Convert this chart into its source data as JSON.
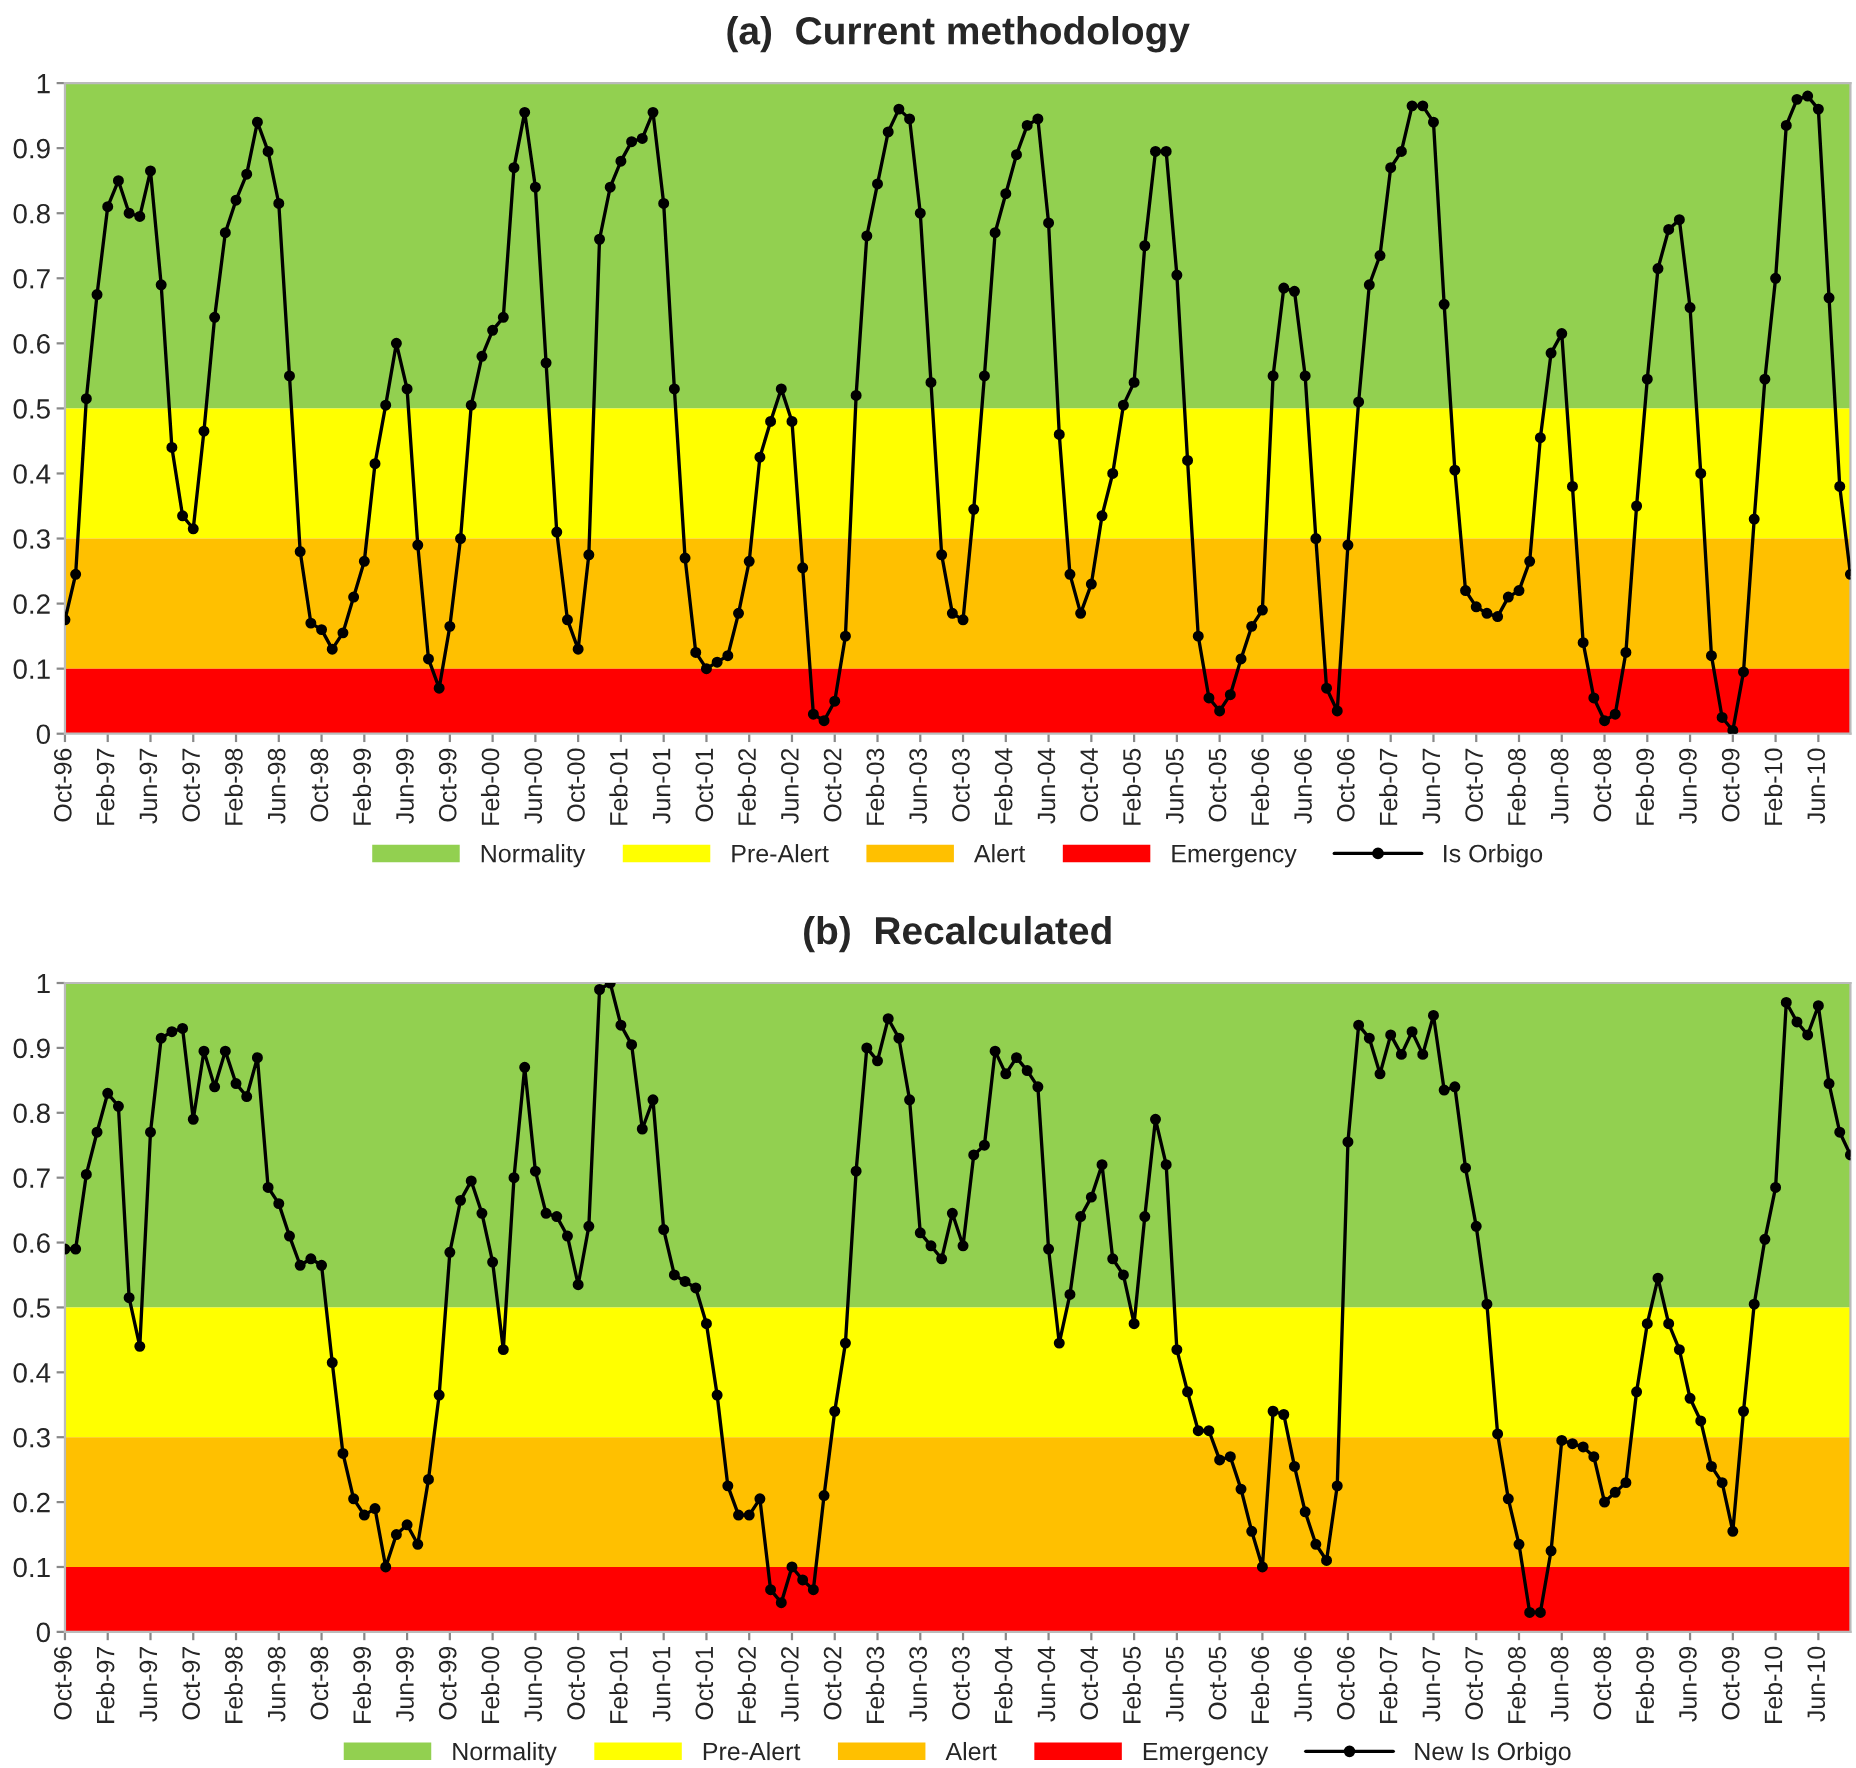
{
  "chart_data": [
    {
      "type": "line",
      "title": "(a)  Current methodology",
      "categories": [
        "Oct-96",
        null,
        null,
        null,
        "Feb-97",
        null,
        null,
        null,
        "Jun-97",
        null,
        null,
        null,
        "Oct-97",
        null,
        null,
        null,
        "Feb-98",
        null,
        null,
        null,
        "Jun-98",
        null,
        null,
        null,
        "Oct-98",
        null,
        null,
        null,
        "Feb-99",
        null,
        null,
        null,
        "Jun-99",
        null,
        null,
        null,
        "Oct-99",
        null,
        null,
        null,
        "Feb-00",
        null,
        null,
        null,
        "Jun-00",
        null,
        null,
        null,
        "Oct-00",
        null,
        null,
        null,
        "Feb-01",
        null,
        null,
        null,
        "Jun-01",
        null,
        null,
        null,
        "Oct-01",
        null,
        null,
        null,
        "Feb-02",
        null,
        null,
        null,
        "Jun-02",
        null,
        null,
        null,
        "Oct-02",
        null,
        null,
        null,
        "Feb-03",
        null,
        null,
        null,
        "Jun-03",
        null,
        null,
        null,
        "Oct-03",
        null,
        null,
        null,
        "Feb-04",
        null,
        null,
        null,
        "Jun-04",
        null,
        null,
        null,
        "Oct-04",
        null,
        null,
        null,
        "Feb-05",
        null,
        null,
        null,
        "Jun-05",
        null,
        null,
        null,
        "Oct-05",
        null,
        null,
        null,
        "Feb-06",
        null,
        null,
        null,
        "Jun-06",
        null,
        null,
        null,
        "Oct-06",
        null,
        null,
        null,
        "Feb-07",
        null,
        null,
        null,
        "Jun-07",
        null,
        null,
        null,
        "Oct-07",
        null,
        null,
        null,
        "Feb-08",
        null,
        null,
        null,
        "Jun-08",
        null,
        null,
        null,
        "Oct-08",
        null,
        null,
        null,
        "Feb-09",
        null,
        null,
        null,
        "Jun-09",
        null,
        null,
        null,
        "Oct-09",
        null,
        null,
        null,
        "Feb-10",
        null,
        null,
        null,
        "Jun-10",
        null,
        null,
        null
      ],
      "series": [
        {
          "name": "Is Orbigo",
          "color": "#000000",
          "values": [
            0.175,
            0.245,
            0.515,
            0.675,
            0.81,
            0.85,
            0.8,
            0.795,
            0.865,
            0.69,
            0.44,
            0.335,
            0.315,
            0.465,
            0.64,
            0.77,
            0.82,
            0.86,
            0.94,
            0.895,
            0.815,
            0.55,
            0.28,
            0.17,
            0.16,
            0.13,
            0.155,
            0.21,
            0.265,
            0.415,
            0.505,
            0.6,
            0.53,
            0.29,
            0.115,
            0.07,
            0.165,
            0.3,
            0.505,
            0.58,
            0.62,
            0.64,
            0.87,
            0.955,
            0.84,
            0.57,
            0.31,
            0.175,
            0.13,
            0.275,
            0.76,
            0.84,
            0.88,
            0.91,
            0.915,
            0.955,
            0.815,
            0.53,
            0.27,
            0.125,
            0.1,
            0.11,
            0.12,
            0.185,
            0.265,
            0.425,
            0.48,
            0.53,
            0.48,
            0.255,
            0.03,
            0.02,
            0.05,
            0.15,
            0.52,
            0.765,
            0.845,
            0.925,
            0.96,
            0.945,
            0.8,
            0.54,
            0.275,
            0.185,
            0.175,
            0.345,
            0.55,
            0.77,
            0.83,
            0.89,
            0.935,
            0.945,
            0.785,
            0.46,
            0.245,
            0.185,
            0.23,
            0.335,
            0.4,
            0.505,
            0.54,
            0.75,
            0.895,
            0.895,
            0.705,
            0.42,
            0.15,
            0.055,
            0.035,
            0.06,
            0.115,
            0.165,
            0.19,
            0.55,
            0.685,
            0.68,
            0.55,
            0.3,
            0.07,
            0.035,
            0.29,
            0.51,
            0.69,
            0.735,
            0.87,
            0.895,
            0.965,
            0.965,
            0.94,
            0.66,
            0.405,
            0.22,
            0.195,
            0.185,
            0.18,
            0.21,
            0.22,
            0.265,
            0.455,
            0.585,
            0.615,
            0.38,
            0.14,
            0.055,
            0.02,
            0.03,
            0.125,
            0.35,
            0.545,
            0.715,
            0.775,
            0.79,
            0.655,
            0.4,
            0.12,
            0.025,
            0.005,
            0.095,
            0.33,
            0.545,
            0.7,
            0.935,
            0.975,
            0.98,
            0.96,
            0.67,
            0.38,
            0.245
          ]
        }
      ],
      "bands": [
        {
          "axis": "y",
          "from": 0.5,
          "to": 1,
          "label": "Normality",
          "color": "#92d050"
        },
        {
          "axis": "y",
          "from": 0.3,
          "to": 0.5,
          "label": "Pre-Alert",
          "color": "#ffff00"
        },
        {
          "axis": "y",
          "from": 0.1,
          "to": 0.3,
          "label": "Alert",
          "color": "#ffc000"
        },
        {
          "axis": "y",
          "from": 0,
          "to": 0.1,
          "label": "Emergency",
          "color": "#ff0000"
        }
      ],
      "ylim": [
        0,
        1
      ],
      "yticks": [
        0,
        0.1,
        0.2,
        0.3,
        0.4,
        0.5,
        0.6,
        0.7,
        0.8,
        0.9,
        1
      ],
      "marker": "circle",
      "line_style": "solid",
      "legend": "bottom"
    },
    {
      "type": "line",
      "title": "(b)  Recalculated",
      "categories": [
        "Oct-96",
        null,
        null,
        null,
        "Feb-97",
        null,
        null,
        null,
        "Jun-97",
        null,
        null,
        null,
        "Oct-97",
        null,
        null,
        null,
        "Feb-98",
        null,
        null,
        null,
        "Jun-98",
        null,
        null,
        null,
        "Oct-98",
        null,
        null,
        null,
        "Feb-99",
        null,
        null,
        null,
        "Jun-99",
        null,
        null,
        null,
        "Oct-99",
        null,
        null,
        null,
        "Feb-00",
        null,
        null,
        null,
        "Jun-00",
        null,
        null,
        null,
        "Oct-00",
        null,
        null,
        null,
        "Feb-01",
        null,
        null,
        null,
        "Jun-01",
        null,
        null,
        null,
        "Oct-01",
        null,
        null,
        null,
        "Feb-02",
        null,
        null,
        null,
        "Jun-02",
        null,
        null,
        null,
        "Oct-02",
        null,
        null,
        null,
        "Feb-03",
        null,
        null,
        null,
        "Jun-03",
        null,
        null,
        null,
        "Oct-03",
        null,
        null,
        null,
        "Feb-04",
        null,
        null,
        null,
        "Jun-04",
        null,
        null,
        null,
        "Oct-04",
        null,
        null,
        null,
        "Feb-05",
        null,
        null,
        null,
        "Jun-05",
        null,
        null,
        null,
        "Oct-05",
        null,
        null,
        null,
        "Feb-06",
        null,
        null,
        null,
        "Jun-06",
        null,
        null,
        null,
        "Oct-06",
        null,
        null,
        null,
        "Feb-07",
        null,
        null,
        null,
        "Jun-07",
        null,
        null,
        null,
        "Oct-07",
        null,
        null,
        null,
        "Feb-08",
        null,
        null,
        null,
        "Jun-08",
        null,
        null,
        null,
        "Oct-08",
        null,
        null,
        null,
        "Feb-09",
        null,
        null,
        null,
        "Jun-09",
        null,
        null,
        null,
        "Oct-09",
        null,
        null,
        null,
        "Feb-10",
        null,
        null,
        null,
        "Jun-10",
        null,
        null,
        null
      ],
      "series": [
        {
          "name": "New Is Orbigo",
          "color": "#000000",
          "values": [
            0.59,
            0.59,
            0.705,
            0.77,
            0.83,
            0.81,
            0.515,
            0.44,
            0.77,
            0.915,
            0.925,
            0.93,
            0.79,
            0.895,
            0.84,
            0.895,
            0.845,
            0.825,
            0.885,
            0.685,
            0.66,
            0.61,
            0.565,
            0.575,
            0.565,
            0.415,
            0.275,
            0.205,
            0.18,
            0.19,
            0.1,
            0.15,
            0.165,
            0.135,
            0.235,
            0.365,
            0.585,
            0.665,
            0.695,
            0.645,
            0.57,
            0.435,
            0.7,
            0.87,
            0.71,
            0.645,
            0.64,
            0.61,
            0.535,
            0.625,
            0.99,
            1.0,
            0.935,
            0.905,
            0.775,
            0.82,
            0.62,
            0.55,
            0.54,
            0.53,
            0.475,
            0.365,
            0.225,
            0.18,
            0.18,
            0.205,
            0.065,
            0.045,
            0.1,
            0.08,
            0.065,
            0.21,
            0.34,
            0.445,
            0.71,
            0.9,
            0.88,
            0.945,
            0.915,
            0.82,
            0.615,
            0.595,
            0.575,
            0.645,
            0.595,
            0.735,
            0.75,
            0.895,
            0.86,
            0.885,
            0.865,
            0.84,
            0.59,
            0.445,
            0.52,
            0.64,
            0.67,
            0.72,
            0.575,
            0.55,
            0.475,
            0.64,
            0.79,
            0.72,
            0.435,
            0.37,
            0.31,
            0.31,
            0.265,
            0.27,
            0.22,
            0.155,
            0.1,
            0.34,
            0.335,
            0.255,
            0.185,
            0.135,
            0.11,
            0.225,
            0.755,
            0.935,
            0.915,
            0.86,
            0.92,
            0.89,
            0.925,
            0.89,
            0.95,
            0.835,
            0.84,
            0.715,
            0.625,
            0.505,
            0.305,
            0.205,
            0.135,
            0.03,
            0.03,
            0.125,
            0.295,
            0.29,
            0.285,
            0.27,
            0.2,
            0.215,
            0.23,
            0.37,
            0.475,
            0.545,
            0.475,
            0.435,
            0.36,
            0.325,
            0.255,
            0.23,
            0.155,
            0.34,
            0.505,
            0.605,
            0.685,
            0.97,
            0.94,
            0.92,
            0.965,
            0.845,
            0.77,
            0.735
          ]
        }
      ],
      "bands": [
        {
          "axis": "y",
          "from": 0.5,
          "to": 1,
          "label": "Normality",
          "color": "#92d050"
        },
        {
          "axis": "y",
          "from": 0.3,
          "to": 0.5,
          "label": "Pre-Alert",
          "color": "#ffff00"
        },
        {
          "axis": "y",
          "from": 0.1,
          "to": 0.3,
          "label": "Alert",
          "color": "#ffc000"
        },
        {
          "axis": "y",
          "from": 0,
          "to": 0.1,
          "label": "Emergency",
          "color": "#ff0000"
        }
      ],
      "ylim": [
        0,
        1
      ],
      "yticks": [
        0,
        0.1,
        0.2,
        0.3,
        0.4,
        0.5,
        0.6,
        0.7,
        0.8,
        0.9,
        1
      ],
      "marker": "circle",
      "line_style": "solid",
      "legend": "bottom"
    }
  ]
}
